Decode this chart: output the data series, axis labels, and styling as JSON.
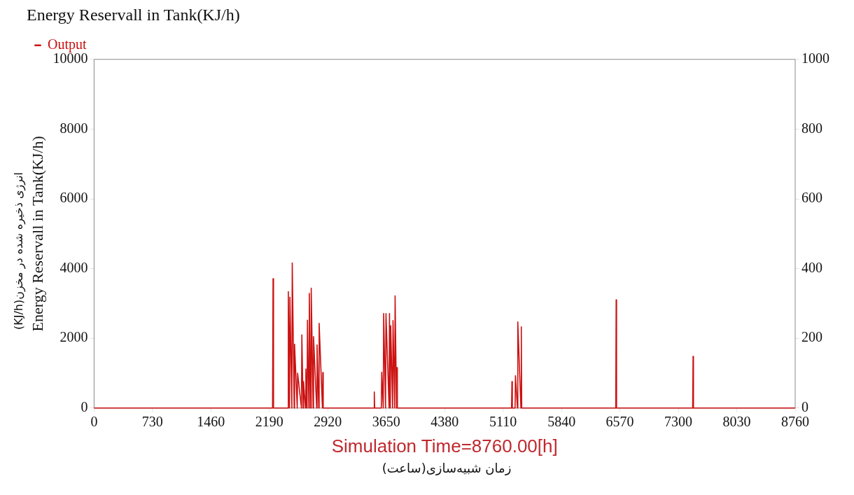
{
  "chart_data": {
    "type": "line",
    "title": "Energy Reservall in Tank(KJ/h)",
    "xlabel": "Simulation Time=8760.00[h]",
    "ylabel": "Energy Reservall in Tank(KJ/h)",
    "annotations": [
      "انرژی ذخیره شده در مخزن(KJ/h)",
      "زمان شبیه‌سازی(ساعت)"
    ],
    "xlim": [
      0,
      8760
    ],
    "xticks": [
      0,
      730,
      1460,
      2190,
      2920,
      3650,
      4380,
      5110,
      5840,
      6570,
      7300,
      8030,
      8760
    ],
    "ylim": [
      0,
      10000
    ],
    "yticks": [
      0,
      2000,
      4000,
      6000,
      8000,
      10000
    ],
    "y2lim": [
      0,
      1000
    ],
    "y2ticks": [
      0,
      200,
      400,
      600,
      800,
      1000
    ],
    "grid": false,
    "legend": "top left",
    "marker": "none",
    "line_style": "solid",
    "series": [
      {
        "name": "Output",
        "color": "#cc1111",
        "x": [
          0,
          2230,
          2236,
          2242,
          2422,
          2427,
          2442,
          2447,
          2471,
          2476,
          2500,
          2505,
          2538,
          2543,
          2591,
          2596,
          2612,
          2617,
          2641,
          2646,
          2661,
          2666,
          2684,
          2689,
          2708,
          2713,
          2737,
          2742,
          2781,
          2786,
          2807,
          2812,
          2853,
          2858,
          2863,
          3496,
          3501,
          3506,
          3589,
          3594,
          3613,
          3618,
          3642,
          3647,
          3686,
          3691,
          3701,
          3706,
          3730,
          3735,
          3756,
          3761,
          3779,
          3784,
          3789,
          5216,
          5221,
          5226,
          5260,
          5265,
          5289,
          5294,
          5333,
          5338,
          5343,
          6518,
          6523,
          6528,
          7479,
          7484,
          7489,
          8760
        ],
        "values": [
          0,
          0,
          3710,
          0,
          0,
          3340,
          0,
          3180,
          0,
          4160,
          0,
          1830,
          0,
          1000,
          0,
          2100,
          0,
          760,
          0,
          1120,
          0,
          2520,
          0,
          3290,
          0,
          3440,
          0,
          2050,
          0,
          1810,
          0,
          2430,
          0,
          1020,
          0,
          0,
          460,
          0,
          0,
          1030,
          0,
          2710,
          0,
          2710,
          0,
          2710,
          0,
          2360,
          0,
          2510,
          0,
          3220,
          0,
          1160,
          0,
          0,
          760,
          0,
          0,
          930,
          0,
          2470,
          0,
          2330,
          0,
          0,
          3100,
          0,
          0,
          1480,
          0,
          0
        ]
      }
    ]
  }
}
